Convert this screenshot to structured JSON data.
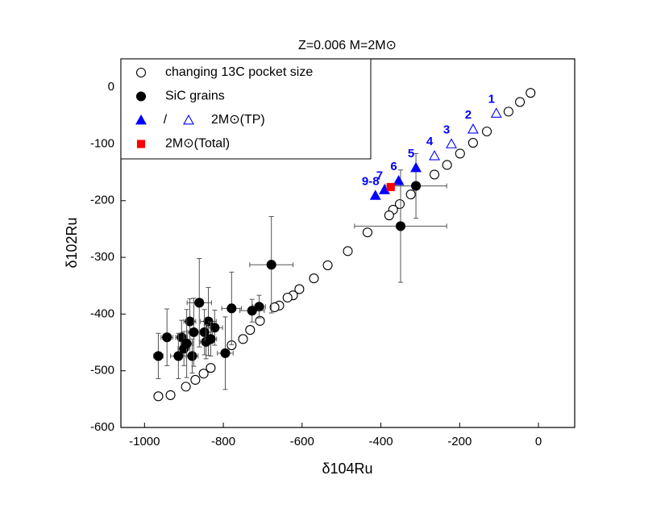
{
  "chart_data": {
    "type": "scatter",
    "title": "Z=0.006 M=2M⊙",
    "x_label": "δ104Ru",
    "y_label": "δ102Ru",
    "xlim": [
      -1060,
      92
    ],
    "ylim": [
      -600,
      50
    ],
    "xticks": [
      -1000,
      -800,
      -600,
      -400,
      -200,
      0
    ],
    "yticks": [
      0,
      -100,
      -200,
      -300,
      -400,
      -500,
      -600
    ],
    "legend": "upper left",
    "legend_separator": "/",
    "series": [
      {
        "name": "changing 13C pocket size",
        "marker": "circle",
        "filled": false,
        "color": "#000000",
        "x": [
          -20,
          -47,
          -76,
          -131,
          -166,
          -199,
          -232,
          -264,
          -324,
          -352,
          -369,
          -379,
          -434,
          -484,
          -535,
          -570,
          -607,
          -623,
          -637,
          -658,
          -670,
          -707,
          -732,
          -750,
          -779,
          -832,
          -850,
          -871,
          -895,
          -934,
          -965
        ],
        "y": [
          -10,
          -26,
          -43,
          -78,
          -98,
          -117,
          -137,
          -154,
          -189,
          -206,
          -216,
          -226,
          -256,
          -289,
          -314,
          -337,
          -356,
          -367,
          -371,
          -385,
          -388,
          -412,
          -428,
          -444,
          -455,
          -495,
          -505,
          -516,
          -528,
          -543,
          -545
        ]
      },
      {
        "name": "SiC grains",
        "marker": "circle",
        "filled": true,
        "color": "#000000",
        "x": [
          -311,
          -350,
          -678,
          -709,
          -727,
          -779,
          -795,
          -822,
          -838,
          -861,
          -848,
          -906,
          -885,
          -900,
          -879,
          -914,
          -965,
          -943,
          -844,
          -832,
          -893,
          -875
        ],
        "y": [
          -174,
          -245,
          -313,
          -387,
          -394,
          -390,
          -469,
          -424,
          -413,
          -380,
          -432,
          -441,
          -413,
          -461,
          -474,
          -474,
          -474,
          -441,
          -449,
          -444,
          -452,
          -432
        ],
        "xerr": [
          78,
          117,
          55,
          16,
          31,
          25,
          20,
          20,
          20,
          31,
          20,
          15,
          15,
          15,
          15,
          20,
          12,
          15,
          15,
          15,
          15,
          15
        ],
        "yerr": [
          57,
          99,
          85,
          20,
          20,
          64,
          64,
          31,
          60,
          78,
          40,
          30,
          40,
          30,
          30,
          40,
          40,
          50,
          30,
          30,
          60,
          60
        ]
      },
      {
        "name": "2M⊙(TP)",
        "marker": "triangle",
        "color": "#0000ff",
        "filled": [
          false,
          false,
          false,
          false,
          true,
          true,
          true,
          true
        ],
        "labels": [
          "1",
          "2",
          "3",
          "4",
          "5",
          "6",
          "7",
          "9-8"
        ],
        "x": [
          -107,
          -166,
          -221,
          -264,
          -311,
          -355,
          -391,
          -414
        ],
        "y": [
          -46,
          -74,
          -100,
          -121,
          -142,
          -165,
          -181,
          -191
        ]
      },
      {
        "name": "2M⊙(Total)",
        "marker": "square",
        "filled": true,
        "color": "#ff0000",
        "x": [
          -375
        ],
        "y": [
          -176
        ]
      }
    ]
  }
}
